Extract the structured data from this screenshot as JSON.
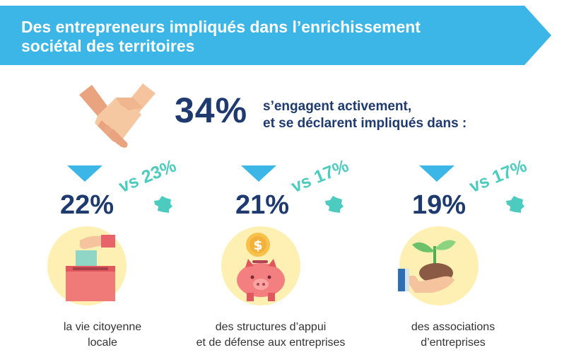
{
  "banner": {
    "title_line1": "Des entrepreneurs impliqués dans l’enrichissement",
    "title_line2": "sociétal des territoires",
    "color": "#3cb6e6"
  },
  "headline": {
    "percent": "34%",
    "text_line1": "s’engagent activement,",
    "text_line2": "et se déclarent impliqués dans :",
    "icon": "handshake-icon"
  },
  "stats": [
    {
      "percent": "22%",
      "comparison": "vs 23%",
      "label_line1": "la vie citoyenne",
      "label_line2": "locale",
      "icon": "ballot-box-icon"
    },
    {
      "percent": "21%",
      "comparison": "vs 17%",
      "label_line1": "des structures d’appui",
      "label_line2": "et de défense aux entreprises",
      "icon": "piggy-bank-icon"
    },
    {
      "percent": "19%",
      "comparison": "vs 17%",
      "label_line1": "des associations",
      "label_line2": "d’entreprises",
      "icon": "plant-in-hand-icon"
    }
  ],
  "colors": {
    "navy": "#1e3a6e",
    "teal": "#4ecbbf",
    "blue": "#3cb6e6",
    "disc": "#fdf0b2"
  }
}
